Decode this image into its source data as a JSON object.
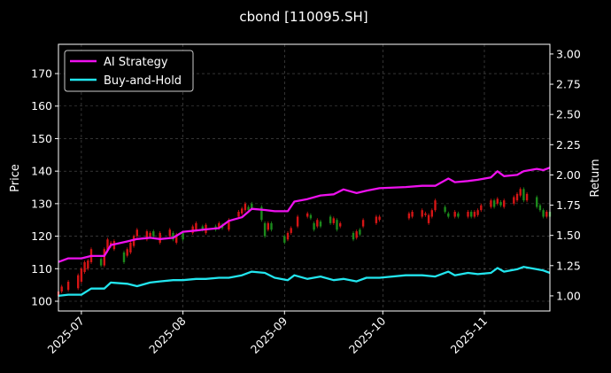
{
  "chart_data": {
    "type": "line",
    "title": "cbond [110095.SH]",
    "xlabel": "",
    "ylabel": "Price",
    "ylabel_right": "Return",
    "x_ticks": [
      "2025-07",
      "2025-08",
      "2025-09",
      "2025-10",
      "2025-11"
    ],
    "x_range": [
      "2025-06-24",
      "2025-11-21"
    ],
    "ylim_left": [
      97,
      179
    ],
    "yticks_left": [
      100,
      110,
      120,
      130,
      140,
      150,
      160,
      170
    ],
    "ylim_right": [
      0.875,
      3.08
    ],
    "yticks_right": [
      "1.00",
      "1.25",
      "1.50",
      "1.75",
      "2.00",
      "2.25",
      "2.50",
      "2.75",
      "3.00"
    ],
    "grid": true,
    "legend_position": "top-left",
    "colors": {
      "background": "#000000",
      "ai_strategy": "#ee11ee",
      "buy_and_hold": "#22e5ee",
      "candle_up": "#d51515",
      "candle_down": "#1c8a1c",
      "grid": "#555555"
    },
    "series": [
      {
        "name": "AI Strategy",
        "axis": "right",
        "points": [
          [
            "2025-06-24",
            1.28
          ],
          [
            "2025-06-27",
            1.31
          ],
          [
            "2025-07-01",
            1.31
          ],
          [
            "2025-07-04",
            1.33
          ],
          [
            "2025-07-08",
            1.33
          ],
          [
            "2025-07-10",
            1.42
          ],
          [
            "2025-07-15",
            1.45
          ],
          [
            "2025-07-18",
            1.47
          ],
          [
            "2025-07-22",
            1.48
          ],
          [
            "2025-07-25",
            1.47
          ],
          [
            "2025-07-29",
            1.48
          ],
          [
            "2025-08-01",
            1.53
          ],
          [
            "2025-08-05",
            1.54
          ],
          [
            "2025-08-08",
            1.55
          ],
          [
            "2025-08-12",
            1.56
          ],
          [
            "2025-08-15",
            1.62
          ],
          [
            "2025-08-19",
            1.65
          ],
          [
            "2025-08-22",
            1.72
          ],
          [
            "2025-08-26",
            1.71
          ],
          [
            "2025-08-29",
            1.7
          ],
          [
            "2025-09-02",
            1.7
          ],
          [
            "2025-09-04",
            1.78
          ],
          [
            "2025-09-08",
            1.8
          ],
          [
            "2025-09-12",
            1.83
          ],
          [
            "2025-09-16",
            1.84
          ],
          [
            "2025-09-19",
            1.88
          ],
          [
            "2025-09-23",
            1.85
          ],
          [
            "2025-09-26",
            1.87
          ],
          [
            "2025-09-30",
            1.89
          ],
          [
            "2025-10-08",
            1.9
          ],
          [
            "2025-10-13",
            1.91
          ],
          [
            "2025-10-17",
            1.91
          ],
          [
            "2025-10-21",
            1.97
          ],
          [
            "2025-10-23",
            1.94
          ],
          [
            "2025-10-27",
            1.95
          ],
          [
            "2025-10-30",
            1.96
          ],
          [
            "2025-11-03",
            1.98
          ],
          [
            "2025-11-05",
            2.03
          ],
          [
            "2025-11-07",
            1.99
          ],
          [
            "2025-11-11",
            2.0
          ],
          [
            "2025-11-13",
            2.03
          ],
          [
            "2025-11-17",
            2.05
          ],
          [
            "2025-11-19",
            2.04
          ],
          [
            "2025-11-21",
            2.06
          ]
        ]
      },
      {
        "name": "Buy-and-Hold",
        "axis": "right",
        "points": [
          [
            "2025-06-24",
            1.0
          ],
          [
            "2025-06-27",
            1.01
          ],
          [
            "2025-07-01",
            1.01
          ],
          [
            "2025-07-04",
            1.06
          ],
          [
            "2025-07-08",
            1.06
          ],
          [
            "2025-07-10",
            1.11
          ],
          [
            "2025-07-15",
            1.1
          ],
          [
            "2025-07-18",
            1.08
          ],
          [
            "2025-07-22",
            1.11
          ],
          [
            "2025-07-25",
            1.12
          ],
          [
            "2025-07-29",
            1.13
          ],
          [
            "2025-08-01",
            1.13
          ],
          [
            "2025-08-05",
            1.14
          ],
          [
            "2025-08-08",
            1.14
          ],
          [
            "2025-08-12",
            1.15
          ],
          [
            "2025-08-15",
            1.15
          ],
          [
            "2025-08-19",
            1.17
          ],
          [
            "2025-08-22",
            1.2
          ],
          [
            "2025-08-26",
            1.19
          ],
          [
            "2025-08-29",
            1.15
          ],
          [
            "2025-09-02",
            1.13
          ],
          [
            "2025-09-04",
            1.17
          ],
          [
            "2025-09-08",
            1.14
          ],
          [
            "2025-09-12",
            1.16
          ],
          [
            "2025-09-16",
            1.13
          ],
          [
            "2025-09-19",
            1.14
          ],
          [
            "2025-09-23",
            1.12
          ],
          [
            "2025-09-26",
            1.15
          ],
          [
            "2025-09-30",
            1.15
          ],
          [
            "2025-10-08",
            1.17
          ],
          [
            "2025-10-13",
            1.17
          ],
          [
            "2025-10-17",
            1.16
          ],
          [
            "2025-10-21",
            1.2
          ],
          [
            "2025-10-23",
            1.17
          ],
          [
            "2025-10-27",
            1.19
          ],
          [
            "2025-10-30",
            1.18
          ],
          [
            "2025-11-03",
            1.19
          ],
          [
            "2025-11-05",
            1.23
          ],
          [
            "2025-11-07",
            1.2
          ],
          [
            "2025-11-11",
            1.22
          ],
          [
            "2025-11-13",
            1.24
          ],
          [
            "2025-11-17",
            1.22
          ],
          [
            "2025-11-19",
            1.21
          ],
          [
            "2025-11-21",
            1.19
          ]
        ]
      }
    ],
    "candles": [
      [
        "2025-06-24",
        101.5,
        103.0
      ],
      [
        "2025-06-25",
        103.0,
        104.5
      ],
      [
        "2025-06-27",
        103.5,
        106.0
      ],
      [
        "2025-06-30",
        104.0,
        108.0
      ],
      [
        "2025-07-01",
        106.0,
        110.0
      ],
      [
        "2025-07-02",
        109.0,
        112.0
      ],
      [
        "2025-07-03",
        110.0,
        112.5
      ],
      [
        "2025-07-04",
        112.0,
        116.0
      ],
      [
        "2025-07-07",
        113.0,
        111.0
      ],
      [
        "2025-07-08",
        111.0,
        116.0
      ],
      [
        "2025-07-09",
        115.5,
        119.0
      ],
      [
        "2025-07-10",
        117.0,
        118.0
      ],
      [
        "2025-07-11",
        116.0,
        118.5
      ],
      [
        "2025-07-14",
        115.0,
        112.0
      ],
      [
        "2025-07-15",
        114.0,
        116.0
      ],
      [
        "2025-07-16",
        115.0,
        118.0
      ],
      [
        "2025-07-17",
        117.0,
        120.0
      ],
      [
        "2025-07-18",
        120.0,
        122.0
      ],
      [
        "2025-07-21",
        119.0,
        121.5
      ],
      [
        "2025-07-22",
        120.0,
        121.0
      ],
      [
        "2025-07-23",
        121.5,
        120.0
      ],
      [
        "2025-07-25",
        118.0,
        121.0
      ],
      [
        "2025-07-28",
        120.0,
        122.0
      ],
      [
        "2025-07-29",
        121.0,
        119.0
      ],
      [
        "2025-07-30",
        118.0,
        120.5
      ],
      [
        "2025-08-01",
        121.0,
        119.0
      ],
      [
        "2025-08-04",
        121.0,
        123.0
      ],
      [
        "2025-08-05",
        122.0,
        124.0
      ],
      [
        "2025-08-07",
        123.0,
        122.0
      ],
      [
        "2025-08-08",
        121.0,
        123.5
      ],
      [
        "2025-08-11",
        123.0,
        122.0
      ],
      [
        "2025-08-12",
        122.5,
        124.0
      ],
      [
        "2025-08-13",
        123.5,
        122.5
      ],
      [
        "2025-08-15",
        122.0,
        125.0
      ],
      [
        "2025-08-18",
        126.0,
        127.5
      ],
      [
        "2025-08-19",
        127.0,
        128.5
      ],
      [
        "2025-08-20",
        128.0,
        130.0
      ],
      [
        "2025-08-21",
        129.0,
        128.0
      ],
      [
        "2025-08-22",
        130.0,
        128.5
      ],
      [
        "2025-08-25",
        129.0,
        125.0
      ],
      [
        "2025-08-26",
        124.0,
        120.0
      ],
      [
        "2025-08-27",
        122.0,
        124.0
      ],
      [
        "2025-08-28",
        124.0,
        122.0
      ],
      [
        "2025-09-01",
        120.0,
        118.0
      ],
      [
        "2025-09-02",
        119.0,
        121.0
      ],
      [
        "2025-09-03",
        121.0,
        122.5
      ],
      [
        "2025-09-05",
        123.0,
        126.0
      ],
      [
        "2025-09-08",
        126.0,
        127.0
      ],
      [
        "2025-09-09",
        126.5,
        125.5
      ],
      [
        "2025-09-10",
        124.0,
        122.0
      ],
      [
        "2025-09-11",
        123.0,
        125.0
      ],
      [
        "2025-09-12",
        124.5,
        123.0
      ],
      [
        "2025-09-15",
        126.0,
        124.0
      ],
      [
        "2025-09-16",
        124.0,
        125.5
      ],
      [
        "2025-09-17",
        125.0,
        122.0
      ],
      [
        "2025-09-18",
        123.0,
        124.0
      ],
      [
        "2025-09-22",
        121.0,
        119.0
      ],
      [
        "2025-09-23",
        119.5,
        121.5
      ],
      [
        "2025-09-24",
        122.0,
        120.5
      ],
      [
        "2025-09-25",
        123.0,
        125.0
      ],
      [
        "2025-09-29",
        124.0,
        126.0
      ],
      [
        "2025-09-30",
        125.0,
        126.0
      ],
      [
        "2025-10-09",
        125.5,
        127.0
      ],
      [
        "2025-10-10",
        126.0,
        127.5
      ],
      [
        "2025-10-13",
        126.0,
        128.0
      ],
      [
        "2025-10-14",
        126.5,
        127.0
      ],
      [
        "2025-10-15",
        124.0,
        126.5
      ],
      [
        "2025-10-16",
        126.0,
        128.0
      ],
      [
        "2025-10-17",
        128.0,
        131.0
      ],
      [
        "2025-10-20",
        129.0,
        127.5
      ],
      [
        "2025-10-21",
        127.0,
        126.0
      ],
      [
        "2025-10-23",
        126.0,
        127.5
      ],
      [
        "2025-10-24",
        127.0,
        126.0
      ],
      [
        "2025-10-27",
        126.0,
        127.5
      ],
      [
        "2025-10-28",
        127.5,
        126.0
      ],
      [
        "2025-10-29",
        126.0,
        127.5
      ],
      [
        "2025-10-30",
        126.5,
        128.0
      ],
      [
        "2025-10-31",
        128.0,
        129.5
      ],
      [
        "2025-11-03",
        129.0,
        131.0
      ],
      [
        "2025-11-04",
        131.0,
        129.0
      ],
      [
        "2025-11-05",
        130.0,
        131.5
      ],
      [
        "2025-11-06",
        130.5,
        129.5
      ],
      [
        "2025-11-07",
        129.0,
        131.0
      ],
      [
        "2025-11-10",
        130.0,
        132.0
      ],
      [
        "2025-11-11",
        131.0,
        133.0
      ],
      [
        "2025-11-12",
        132.5,
        134.5
      ],
      [
        "2025-11-13",
        134.5,
        131.0
      ],
      [
        "2025-11-14",
        131.0,
        133.0
      ],
      [
        "2025-11-17",
        132.0,
        129.0
      ],
      [
        "2025-11-18",
        129.5,
        128.0
      ],
      [
        "2025-11-19",
        128.0,
        126.0
      ],
      [
        "2025-11-20",
        126.0,
        127.5
      ],
      [
        "2025-11-21",
        127.5,
        126.0
      ]
    ]
  }
}
